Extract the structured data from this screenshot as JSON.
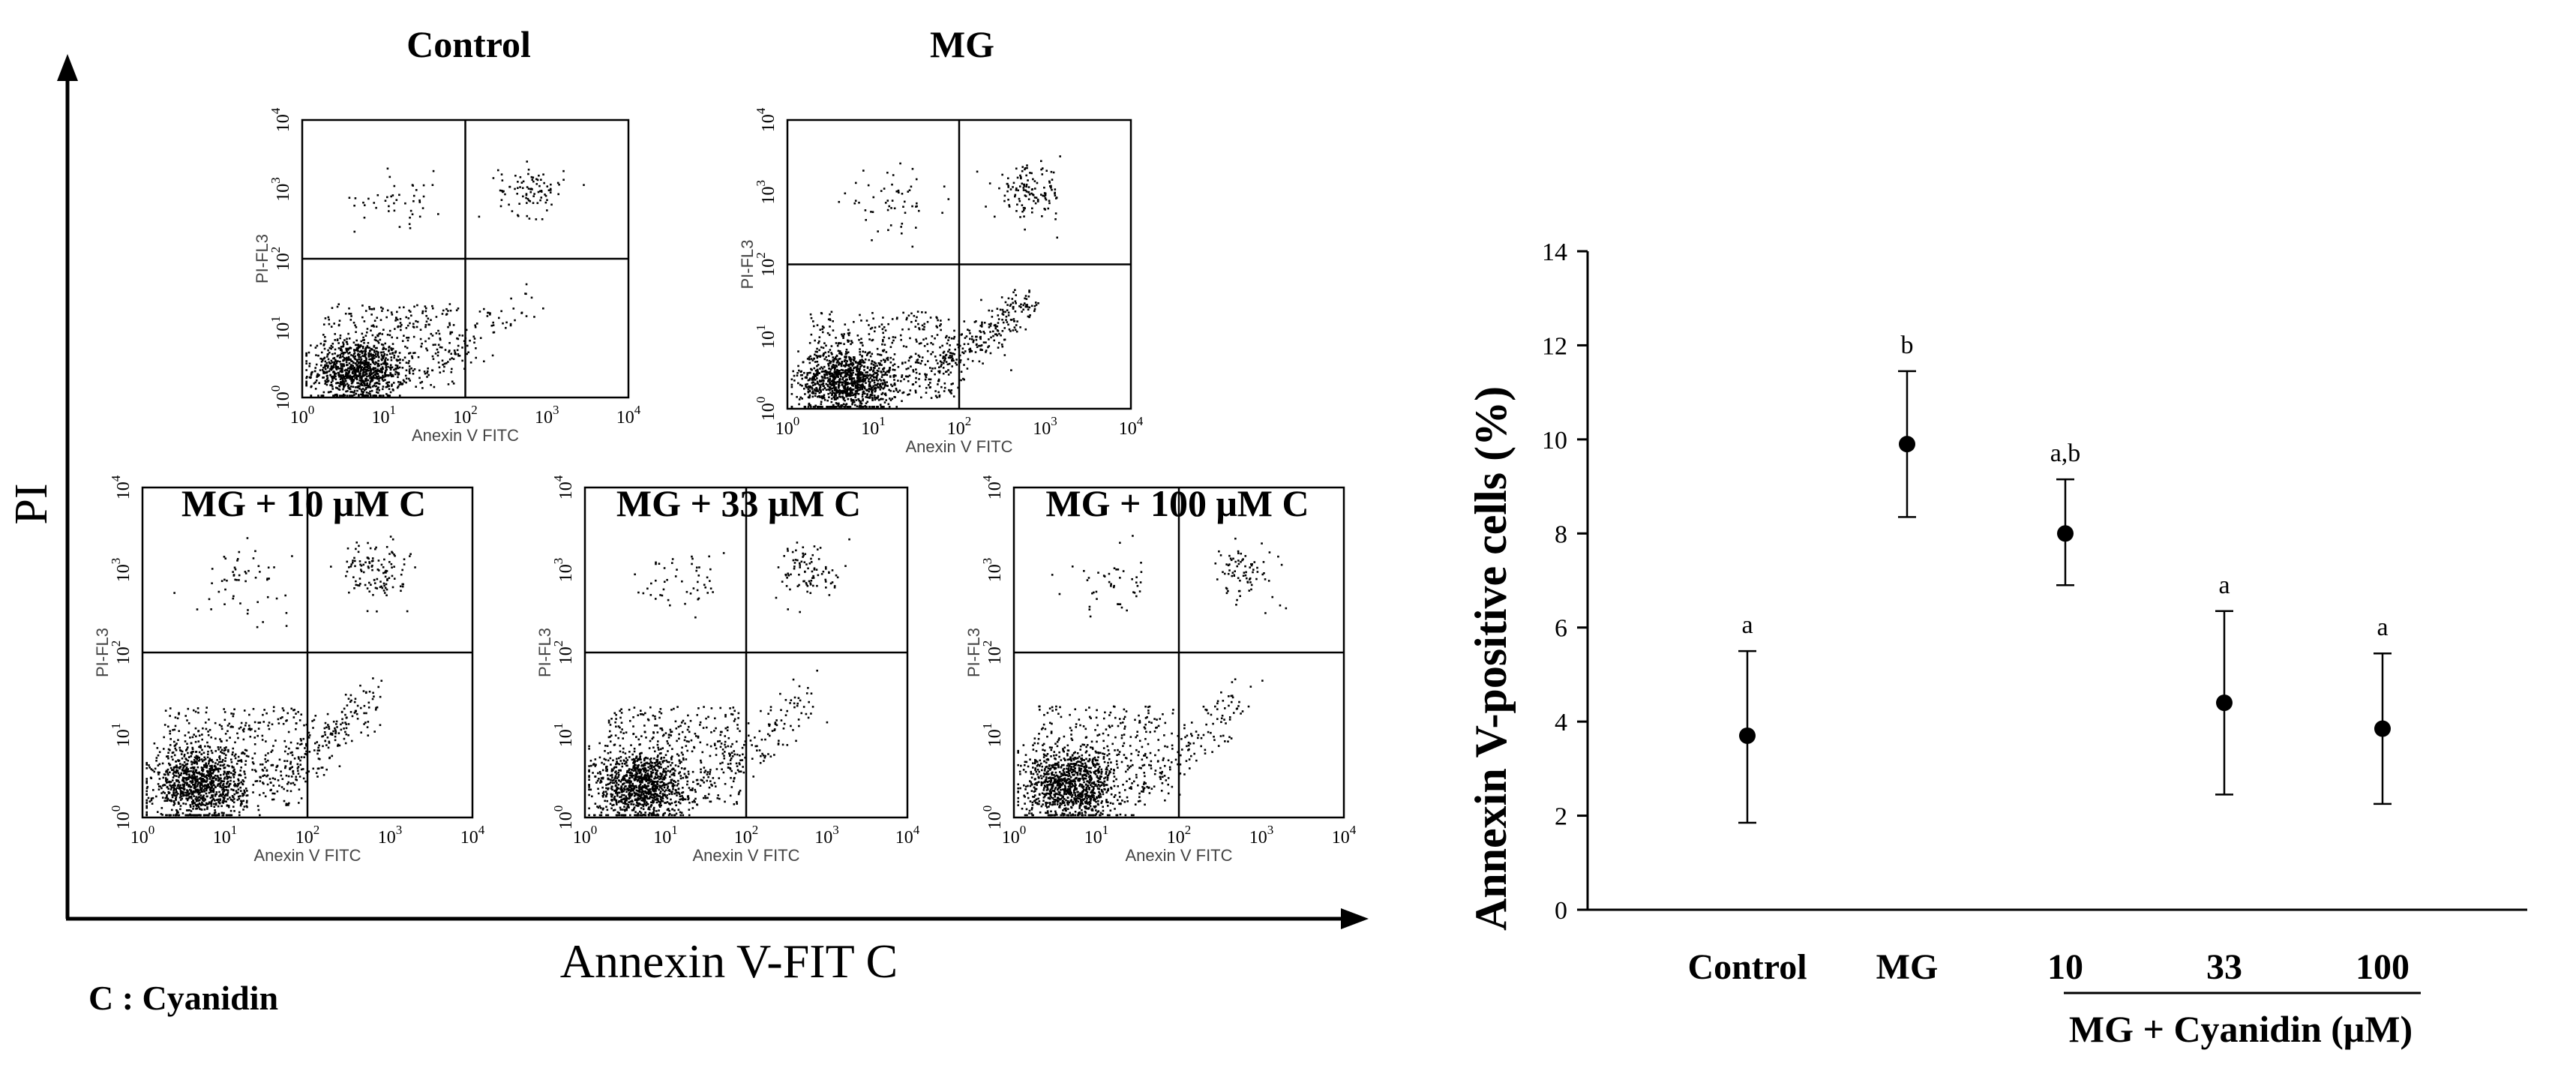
{
  "left_figure": {
    "y_axis_label": "PI",
    "x_axis_label": "Annexin V-FIT C",
    "footnote": "C : Cyanidin",
    "panels": [
      {
        "title": "Control",
        "x_label": "Anexin V FITC",
        "y_label": "PI-FL3",
        "x_ticks": [
          "10^0",
          "10^1",
          "10^2",
          "10^3",
          "10^4"
        ],
        "y_ticks": [
          "10^0",
          "10^1",
          "10^2",
          "10^3",
          "10^4"
        ]
      },
      {
        "title": "MG",
        "x_label": "Anexin V FITC",
        "y_label": "PI-FL3",
        "x_ticks": [
          "10^0",
          "10^1",
          "10^2",
          "10^3",
          "10^4"
        ],
        "y_ticks": [
          "10^0",
          "10^1",
          "10^2",
          "10^3",
          "10^4"
        ]
      },
      {
        "title": "MG + 10 μM C",
        "x_label": "Anexin V FITC",
        "y_label": "PI-FL3",
        "x_ticks": [
          "10^0",
          "10^1",
          "10^2",
          "10^3",
          "10^4"
        ],
        "y_ticks": [
          "10^0",
          "10^1",
          "10^2",
          "10^3",
          "10^4"
        ]
      },
      {
        "title": "MG + 33 μM C",
        "x_label": "Anexin V FITC",
        "y_label": "PI-FL3",
        "x_ticks": [
          "10^0",
          "10^1",
          "10^2",
          "10^3",
          "10^4"
        ],
        "y_ticks": [
          "10^0",
          "10^1",
          "10^2",
          "10^3",
          "10^4"
        ]
      },
      {
        "title": "MG + 100 μM C",
        "x_label": "Anexin V FITC",
        "y_label": "PI-FL3",
        "x_ticks": [
          "10^0",
          "10^1",
          "10^2",
          "10^3",
          "10^4"
        ],
        "y_ticks": [
          "10^0",
          "10^1",
          "10^2",
          "10^3",
          "10^4"
        ]
      }
    ]
  },
  "chart_data": {
    "type": "scatter",
    "categories": [
      "Control",
      "MG",
      "10",
      "33",
      "100"
    ],
    "values": [
      3.7,
      9.9,
      8.0,
      4.4,
      3.85
    ],
    "error_low": [
      1.85,
      8.35,
      6.9,
      2.45,
      2.25
    ],
    "error_high": [
      5.5,
      11.45,
      9.15,
      6.35,
      5.45
    ],
    "significance": [
      "a",
      "b",
      "a,b",
      "a",
      "a"
    ],
    "ylabel": "Annexin V-positive cells (%)",
    "xlabel": "",
    "ylim": [
      0,
      14
    ],
    "yticks": [
      0,
      2,
      4,
      6,
      8,
      10,
      12,
      14
    ],
    "group_label": "MG + Cyanidin (μM)",
    "marker_color": "#000000"
  }
}
